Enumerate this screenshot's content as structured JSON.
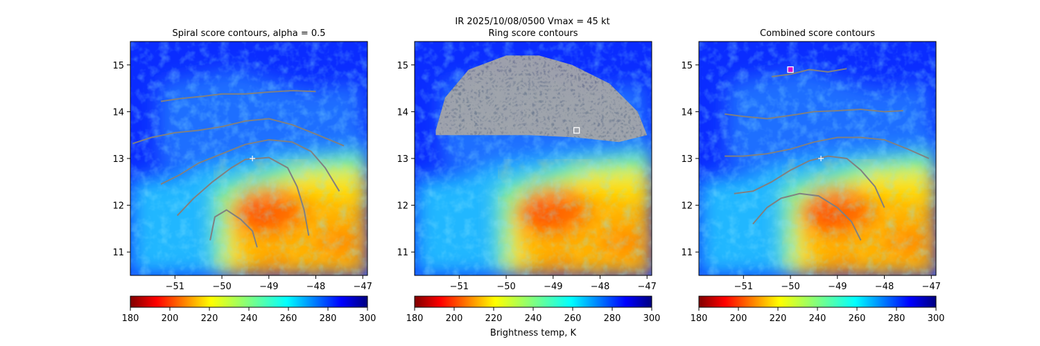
{
  "figure": {
    "suptitle_line1": "IR  2025/10/08/0500    Vmax = 45 kt"
  },
  "chart_data": [
    {
      "type": "heatmap",
      "title": "Spiral score contours, alpha =  0.5",
      "xlim": [
        -51.95,
        -46.9
      ],
      "ylim": [
        10.5,
        15.5
      ],
      "xticks": [
        "−51",
        "−50",
        "−49",
        "−48",
        "−47"
      ],
      "xtick_values": [
        -51,
        -50,
        -49,
        -48,
        -47
      ],
      "yticks": [
        "11",
        "12",
        "13",
        "14",
        "15"
      ],
      "ytick_values": [
        11,
        12,
        13,
        14,
        15
      ],
      "center_marker": [
        -49.35,
        13.0
      ],
      "contour_color": "#808080",
      "contours": [
        [
          [
            -51.3,
            14.22
          ],
          [
            -50.9,
            14.28
          ],
          [
            -50.4,
            14.33
          ],
          [
            -50.0,
            14.38
          ],
          [
            -49.5,
            14.38
          ],
          [
            -49.0,
            14.42
          ],
          [
            -48.5,
            14.45
          ],
          [
            -48.0,
            14.43
          ]
        ],
        [
          [
            -51.9,
            13.32
          ],
          [
            -51.5,
            13.45
          ],
          [
            -51.0,
            13.55
          ],
          [
            -50.5,
            13.6
          ],
          [
            -50.0,
            13.68
          ],
          [
            -49.5,
            13.8
          ],
          [
            -49.0,
            13.85
          ],
          [
            -48.5,
            13.72
          ],
          [
            -48.0,
            13.52
          ],
          [
            -47.4,
            13.27
          ]
        ],
        [
          [
            -51.3,
            12.45
          ],
          [
            -50.9,
            12.65
          ],
          [
            -50.5,
            12.9
          ],
          [
            -50.0,
            13.1
          ],
          [
            -49.5,
            13.3
          ],
          [
            -49.0,
            13.4
          ],
          [
            -48.5,
            13.35
          ],
          [
            -48.1,
            13.15
          ],
          [
            -47.8,
            12.8
          ],
          [
            -47.5,
            12.3
          ]
        ],
        [
          [
            -50.95,
            11.78
          ],
          [
            -50.6,
            12.15
          ],
          [
            -50.2,
            12.5
          ],
          [
            -49.8,
            12.8
          ],
          [
            -49.5,
            12.98
          ],
          [
            -49.0,
            13.02
          ],
          [
            -48.6,
            12.8
          ],
          [
            -48.4,
            12.4
          ],
          [
            -48.25,
            11.9
          ],
          [
            -48.15,
            11.35
          ]
        ],
        [
          [
            -50.25,
            11.25
          ],
          [
            -50.15,
            11.75
          ],
          [
            -49.9,
            11.9
          ],
          [
            -49.6,
            11.7
          ],
          [
            -49.35,
            11.45
          ],
          [
            -49.25,
            11.1
          ]
        ]
      ],
      "colorbar": {
        "ticks": [
          "180",
          "200",
          "220",
          "240",
          "260",
          "280",
          "300"
        ],
        "tick_values": [
          180,
          200,
          220,
          240,
          260,
          280,
          300
        ],
        "range": [
          180,
          300
        ],
        "colormap": "jet_r"
      }
    },
    {
      "type": "heatmap",
      "title": "Ring score contours",
      "xlim": [
        -51.95,
        -46.9
      ],
      "ylim": [
        10.5,
        15.5
      ],
      "xticks": [
        "−51",
        "−50",
        "−49",
        "−48",
        "−47"
      ],
      "xtick_values": [
        -51,
        -50,
        -49,
        -48,
        -47
      ],
      "yticks": [
        "11",
        "12",
        "13",
        "14",
        "15"
      ],
      "ytick_values": [
        11,
        12,
        13,
        14,
        15
      ],
      "center_marker": [
        -48.5,
        13.6
      ],
      "contour_color": "#808080",
      "ring_region": [
        [
          -51.5,
          13.6
        ],
        [
          -51.3,
          14.3
        ],
        [
          -50.8,
          14.9
        ],
        [
          -50.0,
          15.2
        ],
        [
          -49.3,
          15.2
        ],
        [
          -48.6,
          15.0
        ],
        [
          -47.8,
          14.6
        ],
        [
          -47.2,
          14.0
        ],
        [
          -47.0,
          13.5
        ],
        [
          -47.6,
          13.35
        ],
        [
          -48.5,
          13.45
        ],
        [
          -49.5,
          13.5
        ],
        [
          -50.5,
          13.5
        ],
        [
          -51.5,
          13.5
        ]
      ],
      "colorbar": {
        "ticks": [
          "180",
          "200",
          "220",
          "240",
          "260",
          "280",
          "300"
        ],
        "tick_values": [
          180,
          200,
          220,
          240,
          260,
          280,
          300
        ],
        "range": [
          180,
          300
        ],
        "colormap": "jet_r",
        "label": "Brightness temp, K"
      }
    },
    {
      "type": "heatmap",
      "title": "Combined score contours",
      "xlim": [
        -51.95,
        -46.9
      ],
      "ylim": [
        10.5,
        15.5
      ],
      "xticks": [
        "−51",
        "−50",
        "−49",
        "−48",
        "−47"
      ],
      "xtick_values": [
        -51,
        -50,
        -49,
        -48,
        -47
      ],
      "yticks": [
        "11",
        "12",
        "13",
        "14",
        "15"
      ],
      "ytick_values": [
        11,
        12,
        13,
        14,
        15
      ],
      "center_marker": [
        -49.35,
        13.0
      ],
      "max_marker": [
        -50.0,
        14.9
      ],
      "contour_color": "#808080",
      "contours": [
        [
          [
            -50.4,
            14.75
          ],
          [
            -50.0,
            14.8
          ],
          [
            -49.6,
            14.9
          ],
          [
            -49.2,
            14.85
          ],
          [
            -48.8,
            14.92
          ]
        ],
        [
          [
            -51.4,
            13.95
          ],
          [
            -51.0,
            13.9
          ],
          [
            -50.5,
            13.85
          ],
          [
            -50.0,
            13.92
          ],
          [
            -49.5,
            14.0
          ],
          [
            -49.0,
            14.02
          ],
          [
            -48.5,
            14.05
          ],
          [
            -48.0,
            14.0
          ],
          [
            -47.6,
            14.02
          ]
        ],
        [
          [
            -51.4,
            13.05
          ],
          [
            -51.0,
            13.05
          ],
          [
            -50.5,
            13.1
          ],
          [
            -50.0,
            13.2
          ],
          [
            -49.5,
            13.35
          ],
          [
            -49.0,
            13.45
          ],
          [
            -48.5,
            13.45
          ],
          [
            -48.0,
            13.4
          ],
          [
            -47.5,
            13.2
          ],
          [
            -47.05,
            13.0
          ]
        ],
        [
          [
            -51.2,
            12.25
          ],
          [
            -50.8,
            12.3
          ],
          [
            -50.4,
            12.5
          ],
          [
            -50.0,
            12.75
          ],
          [
            -49.6,
            12.95
          ],
          [
            -49.2,
            13.05
          ],
          [
            -48.8,
            13.0
          ],
          [
            -48.5,
            12.75
          ],
          [
            -48.2,
            12.4
          ],
          [
            -48.0,
            11.95
          ]
        ],
        [
          [
            -50.8,
            11.6
          ],
          [
            -50.5,
            11.95
          ],
          [
            -50.2,
            12.15
          ],
          [
            -49.8,
            12.25
          ],
          [
            -49.4,
            12.2
          ],
          [
            -49.0,
            11.95
          ],
          [
            -48.7,
            11.65
          ],
          [
            -48.5,
            11.25
          ]
        ]
      ],
      "colorbar": {
        "ticks": [
          "180",
          "200",
          "220",
          "240",
          "260",
          "280",
          "300"
        ],
        "tick_values": [
          180,
          200,
          220,
          240,
          260,
          280,
          300
        ],
        "range": [
          180,
          300
        ],
        "colormap": "jet_r"
      }
    }
  ]
}
